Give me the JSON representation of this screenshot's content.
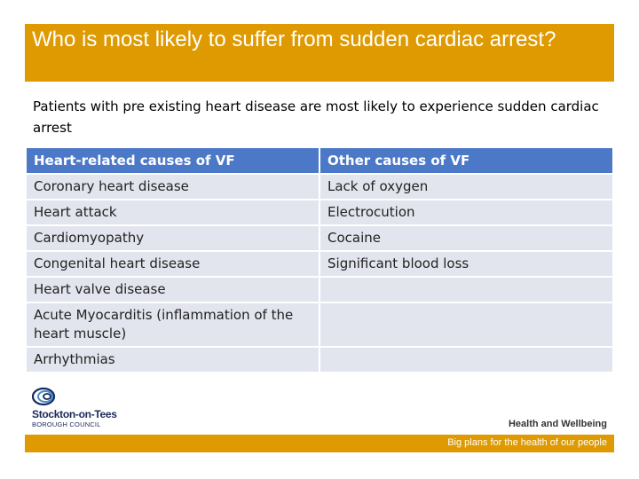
{
  "slide": {
    "title": "Who is most likely to suffer from sudden cardiac arrest?",
    "intro": "Patients with pre existing heart disease are most likely to experience sudden cardiac arrest",
    "accent_color": "#de9a00",
    "header_color": "#4c78c8",
    "row_color": "#e3e5ee"
  },
  "table": {
    "headers": [
      "Heart-related causes of VF",
      "Other causes of VF"
    ],
    "rows": [
      [
        "Coronary heart disease",
        "Lack of oxygen"
      ],
      [
        "Heart attack",
        "Electrocution"
      ],
      [
        "Cardiomyopathy",
        "Cocaine"
      ],
      [
        "Congenital heart disease",
        "Significant blood loss"
      ],
      [
        "Heart valve disease",
        ""
      ],
      [
        "Acute Myocarditis (inflammation of the heart muscle)",
        ""
      ],
      [
        "Arrhythmias",
        ""
      ]
    ]
  },
  "branding": {
    "org_name": "Stockton-on-Tees",
    "org_sub": "BOROUGH COUNCIL",
    "right_label": "Health and Wellbeing",
    "footer_tagline": "Big plans for the health of our people",
    "logo_icon": "swirl-logo-icon"
  }
}
